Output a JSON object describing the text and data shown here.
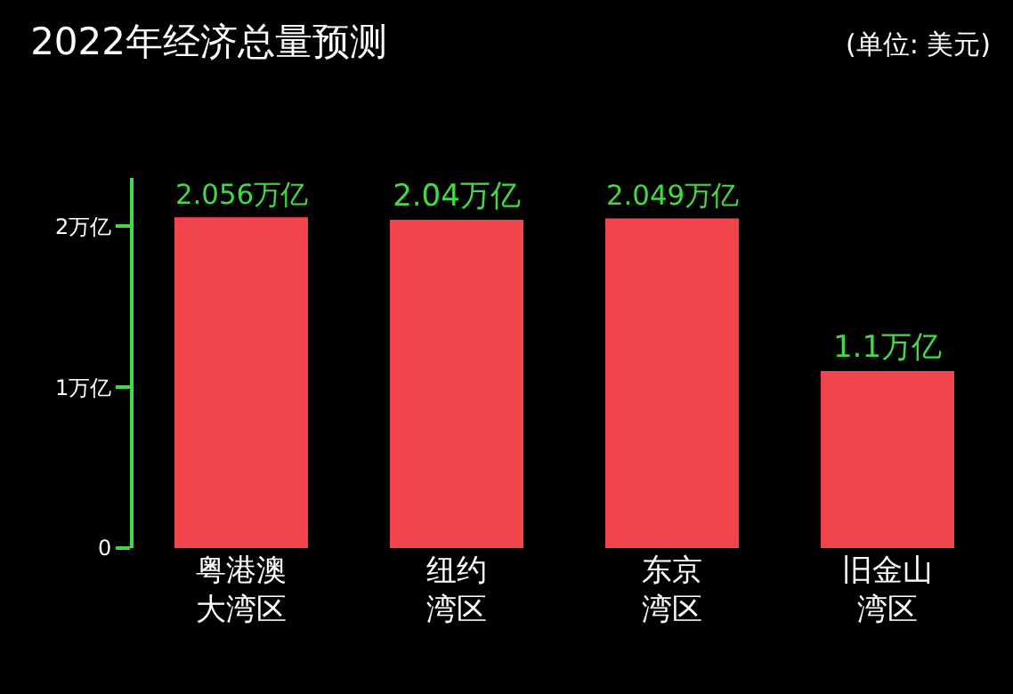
{
  "chart_data": {
    "type": "bar",
    "title": "2022年经济总量预测",
    "annotations": [
      "(单位: 美元)"
    ],
    "categories": [
      "粤港澳大湾区",
      "纽约湾区",
      "东京湾区",
      "旧金山湾区"
    ],
    "values": [
      2.056,
      2.04,
      2.049,
      1.1
    ],
    "value_labels": [
      "2.056万亿",
      "2.04万亿",
      "2.049万亿",
      "1.1万亿"
    ],
    "color": "#f2444c",
    "ylim": [
      0,
      2.3
    ],
    "yticks": [
      0,
      {
        "value": 1,
        "label": "1万亿"
      },
      {
        "value": 2,
        "label": "2万亿"
      }
    ],
    "grid": false,
    "legend": false
  }
}
